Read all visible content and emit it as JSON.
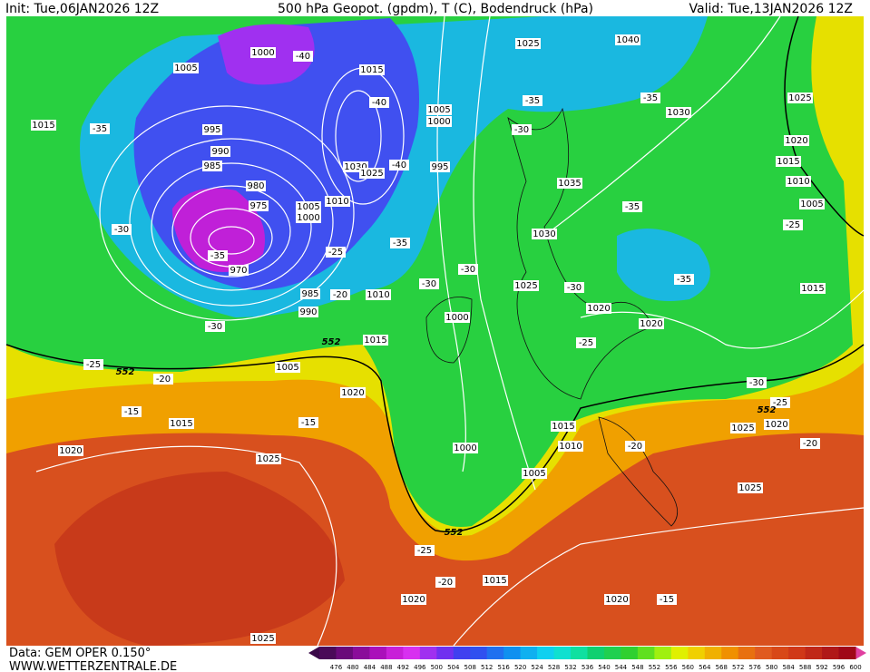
{
  "header": {
    "init": "Init: Tue,06JAN2026 12Z",
    "title": "500 hPa Geopot. (gpdm), T (C), Bodendruck (hPa)",
    "valid": "Valid: Tue,13JAN2026 12Z"
  },
  "footer": {
    "data": "Data: GEM OPER 0.150°",
    "site": "WWW.WETTERZENTRALE.DE"
  },
  "map": {
    "isobar_labels": [
      "1005",
      "1000",
      "1015",
      "1025",
      "1040",
      "1025",
      "1015",
      "995",
      "990",
      "985",
      "980",
      "975",
      "1030",
      "1020",
      "1015",
      "1010",
      "1005",
      "1035",
      "1030",
      "1025",
      "1020",
      "1020",
      "1015",
      "1005",
      "1000",
      "995",
      "1030",
      "1025",
      "1010",
      "1005",
      "1000",
      "985",
      "990",
      "1010",
      "1015",
      "1005",
      "1000",
      "1020",
      "1015",
      "1020",
      "1025",
      "1015",
      "1010",
      "1000",
      "1005",
      "1025",
      "1025",
      "1020",
      "1015",
      "1020",
      "1020",
      "1025",
      "970"
    ],
    "temperature_labels": [
      "-35",
      "-30",
      "-35",
      "-30",
      "-25",
      "-20",
      "-15",
      "-15",
      "-40",
      "-40",
      "-40",
      "-35",
      "-30",
      "-30",
      "-25",
      "-20",
      "-35",
      "-30",
      "-35",
      "-35",
      "-35",
      "-30",
      "-25",
      "-25",
      "-30",
      "-25",
      "-20",
      "-20",
      "-25",
      "-20",
      "-15"
    ],
    "height_labels": [
      "552",
      "552",
      "552",
      "552"
    ]
  },
  "colorbar": {
    "labels": [
      476,
      480,
      484,
      488,
      492,
      496,
      500,
      504,
      508,
      512,
      516,
      520,
      524,
      528,
      532,
      536,
      540,
      544,
      548,
      552,
      556,
      560,
      564,
      568,
      572,
      576,
      580,
      584,
      588,
      592,
      596,
      600
    ],
    "colors": [
      "#4a0a58",
      "#6a0a7a",
      "#8a0c9a",
      "#aa10ba",
      "#c820d8",
      "#d830f0",
      "#a030f0",
      "#7030f0",
      "#4040f0",
      "#3050f0",
      "#2070f0",
      "#1090f0",
      "#10b0f0",
      "#10d0f0",
      "#10e0d0",
      "#10e0a0",
      "#10d070",
      "#20d050",
      "#30d030",
      "#60e020",
      "#a0f010",
      "#e0f000",
      "#f0d000",
      "#f0b000",
      "#f09000",
      "#e87010",
      "#e05a20",
      "#d84818",
      "#d03818",
      "#c02818",
      "#b01818",
      "#a00818"
    ]
  }
}
